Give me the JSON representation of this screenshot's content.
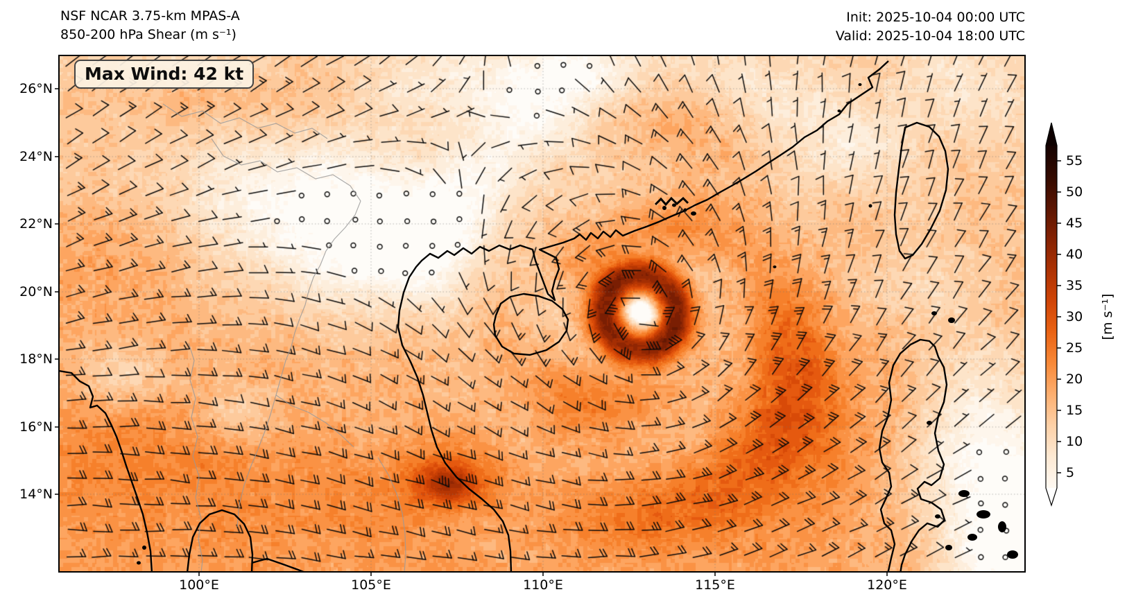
{
  "header": {
    "title_line1": "NSF NCAR 3.75-km MPAS-A",
    "title_line2": "850-200 hPa Shear (m s⁻¹)",
    "init_time": "Init: 2025-10-04 00:00 UTC",
    "valid_time": "Valid: 2025-10-04 18:00 UTC"
  },
  "annotation": {
    "max_wind": "Max Wind: 42 kt"
  },
  "axes": {
    "lat_tick_labels": [
      "26°N",
      "24°N",
      "22°N",
      "20°N",
      "18°N",
      "16°N",
      "14°N"
    ],
    "lon_tick_labels": [
      "100°E",
      "105°E",
      "110°E",
      "115°E",
      "120°E"
    ]
  },
  "colorbar": {
    "tick_values": [
      55,
      50,
      45,
      40,
      35,
      30,
      25,
      20,
      15,
      10,
      5
    ],
    "unit_label": "[m s⁻¹]",
    "colormap_anchors": [
      [
        0,
        "#ffffff"
      ],
      [
        5,
        "#fef3e6"
      ],
      [
        10,
        "#fde0c0"
      ],
      [
        15,
        "#fdc390"
      ],
      [
        20,
        "#fd9c51"
      ],
      [
        25,
        "#f4771f"
      ],
      [
        30,
        "#e1500a"
      ],
      [
        35,
        "#c03a04"
      ],
      [
        40,
        "#9b2a03"
      ],
      [
        45,
        "#6f1b03"
      ],
      [
        50,
        "#471001"
      ],
      [
        55,
        "#200400"
      ],
      [
        60,
        "#0a0100"
      ]
    ]
  },
  "style_colors": {
    "wind_barb": "#0a0a0a",
    "coastline": "#000000",
    "admin_border": "#999999",
    "gridline": "#8c8c8c",
    "badge_background": "#fcf2e3",
    "badge_border": "#444444"
  }
}
